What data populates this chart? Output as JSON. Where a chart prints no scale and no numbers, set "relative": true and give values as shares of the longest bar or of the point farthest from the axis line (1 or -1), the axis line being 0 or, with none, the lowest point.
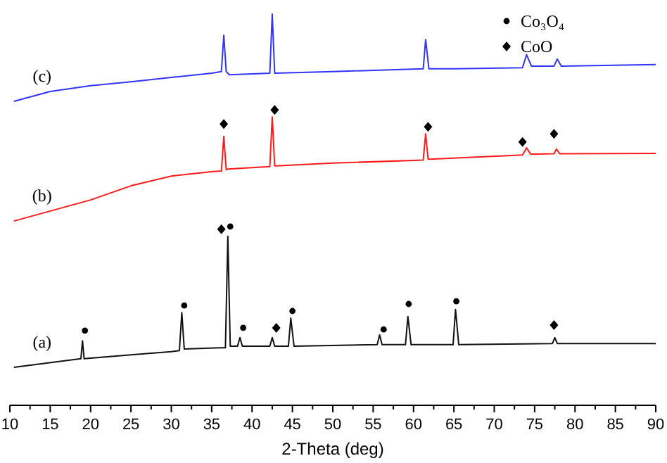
{
  "chart_data": {
    "type": "line",
    "relative": true,
    "xlabel": "2-Theta (deg)",
    "xlim": [
      10,
      90
    ],
    "xticks": [
      10,
      {
        "value": 12.5,
        "label": null
      },
      15,
      {
        "value": 17.5,
        "label": null
      },
      20,
      {
        "value": 22.5,
        "label": null
      },
      25,
      {
        "value": 27.5,
        "label": null
      },
      30,
      {
        "value": 32.5,
        "label": null
      },
      35,
      {
        "value": 37.5,
        "label": null
      },
      40,
      {
        "value": 42.5,
        "label": null
      },
      45,
      {
        "value": 47.5,
        "label": null
      },
      50,
      {
        "value": 52.5,
        "label": null
      },
      55,
      {
        "value": 57.5,
        "label": null
      },
      60,
      {
        "value": 62.5,
        "label": null
      },
      65,
      {
        "value": 67.5,
        "label": null
      },
      70,
      {
        "value": 72.5,
        "label": null
      },
      75,
      {
        "value": 77.5,
        "label": null
      },
      80,
      {
        "value": 82.5,
        "label": null
      },
      85,
      {
        "value": 87.5,
        "label": null
      },
      90
    ],
    "legend": "top right",
    "grid": false,
    "series": [
      {
        "name": "(a)",
        "color": "#111111",
        "x": [
          10.5,
          18.8,
          19.0,
          19.2,
          25,
          30,
          31.0,
          31.3,
          31.6,
          36,
          36.7,
          37.0,
          37.3,
          38.2,
          38.5,
          38.8,
          42.2,
          42.5,
          42.8,
          44.5,
          44.8,
          45.2,
          55.5,
          55.8,
          56.1,
          59.0,
          59.3,
          59.7,
          64.9,
          65.2,
          65.6,
          77.2,
          77.5,
          77.8,
          90
        ],
        "values": [
          0.097,
          0.119,
          0.165,
          0.119,
          0.129,
          0.137,
          0.14,
          0.237,
          0.144,
          0.147,
          0.147,
          0.432,
          0.151,
          0.151,
          0.173,
          0.151,
          0.151,
          0.173,
          0.151,
          0.151,
          0.223,
          0.151,
          0.155,
          0.18,
          0.155,
          0.155,
          0.227,
          0.155,
          0.155,
          0.245,
          0.155,
          0.158,
          0.173,
          0.158,
          0.158
        ]
      },
      {
        "name": "(b)",
        "color": "#ff1a1a",
        "x": [
          10.5,
          20,
          25,
          30,
          35,
          36.2,
          36.5,
          36.8,
          37,
          42.2,
          42.5,
          42.8,
          43,
          50,
          61.2,
          61.5,
          61.8,
          62,
          73.5,
          74,
          74.5,
          77.4,
          77.7,
          78.1,
          90
        ],
        "values": [
          0.471,
          0.525,
          0.561,
          0.586,
          0.597,
          0.599,
          0.687,
          0.602,
          0.604,
          0.61,
          0.737,
          0.612,
          0.612,
          0.619,
          0.627,
          0.694,
          0.629,
          0.629,
          0.64,
          0.658,
          0.642,
          0.643,
          0.655,
          0.643,
          0.644
        ]
      },
      {
        "name": "(c)",
        "color": "#3333ff",
        "x": [
          10.5,
          15,
          20,
          25,
          30,
          35,
          36.2,
          36.5,
          36.8,
          37.2,
          42.2,
          42.5,
          42.8,
          50,
          61.2,
          61.5,
          61.9,
          65,
          73.5,
          74,
          74.6,
          77.4,
          77.8,
          78.3,
          90
        ],
        "values": [
          0.777,
          0.802,
          0.817,
          0.827,
          0.838,
          0.849,
          0.853,
          0.946,
          0.853,
          0.845,
          0.849,
          1.0,
          0.849,
          0.853,
          0.86,
          0.935,
          0.86,
          0.86,
          0.863,
          0.896,
          0.867,
          0.867,
          0.885,
          0.867,
          0.871
        ]
      },
      {
        "name": "Co₃O₄",
        "type": "scatter",
        "marker": "circle",
        "color": "#000000",
        "x": [
          19.3,
          31.6,
          37.3,
          38.9,
          45.0,
          56.3,
          59.4,
          65.3
        ],
        "values": [
          0.191,
          0.255,
          0.457,
          0.198,
          0.241,
          0.194,
          0.259,
          0.266
        ]
      },
      {
        "name": "CoO",
        "type": "scatter",
        "marker": "diamond",
        "color": "#000000",
        "x": [
          36.2,
          43.0,
          77.4,
          36.5,
          42.8,
          61.8,
          73.5,
          77.4
        ],
        "values": [
          0.45,
          0.198,
          0.205,
          0.719,
          0.755,
          0.712,
          0.673,
          0.694
        ]
      }
    ]
  }
}
